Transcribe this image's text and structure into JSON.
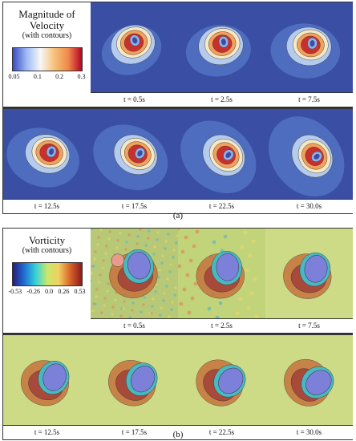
{
  "panel_a": {
    "legend": {
      "title": "Magnitude of Velocity",
      "subtitle": "(with contours)",
      "ticks": [
        "0.05",
        "0.1",
        "0.2",
        "0.3"
      ],
      "colormap": [
        "#3b4cc0",
        "#9ebaf5",
        "#f7f7f7",
        "#f5c27a",
        "#f08a4b",
        "#b40426"
      ]
    },
    "times": [
      "t = 0.5s",
      "t = 2.5s",
      "t = 7.5s",
      "t = 12.5s",
      "t = 17.5s",
      "t = 22.5s",
      "t = 30.0s"
    ],
    "label": "(a)"
  },
  "panel_b": {
    "legend": {
      "title": "Vorticity",
      "subtitle": "(with contours)",
      "ticks": [
        "-0.53",
        "-0.26",
        "0.0",
        "0.26",
        "0.53"
      ],
      "colormap": [
        "#2b1b7a",
        "#1f6fd6",
        "#36d2d8",
        "#c9e86a",
        "#f0d060",
        "#d8632a",
        "#8a1b1b"
      ]
    },
    "times": [
      "t = 0.5s",
      "t = 2.5s",
      "t = 7.5s",
      "t = 12.5s",
      "t = 17.5s",
      "t = 22.5s",
      "t = 30.0s"
    ],
    "label": "(b)"
  }
}
